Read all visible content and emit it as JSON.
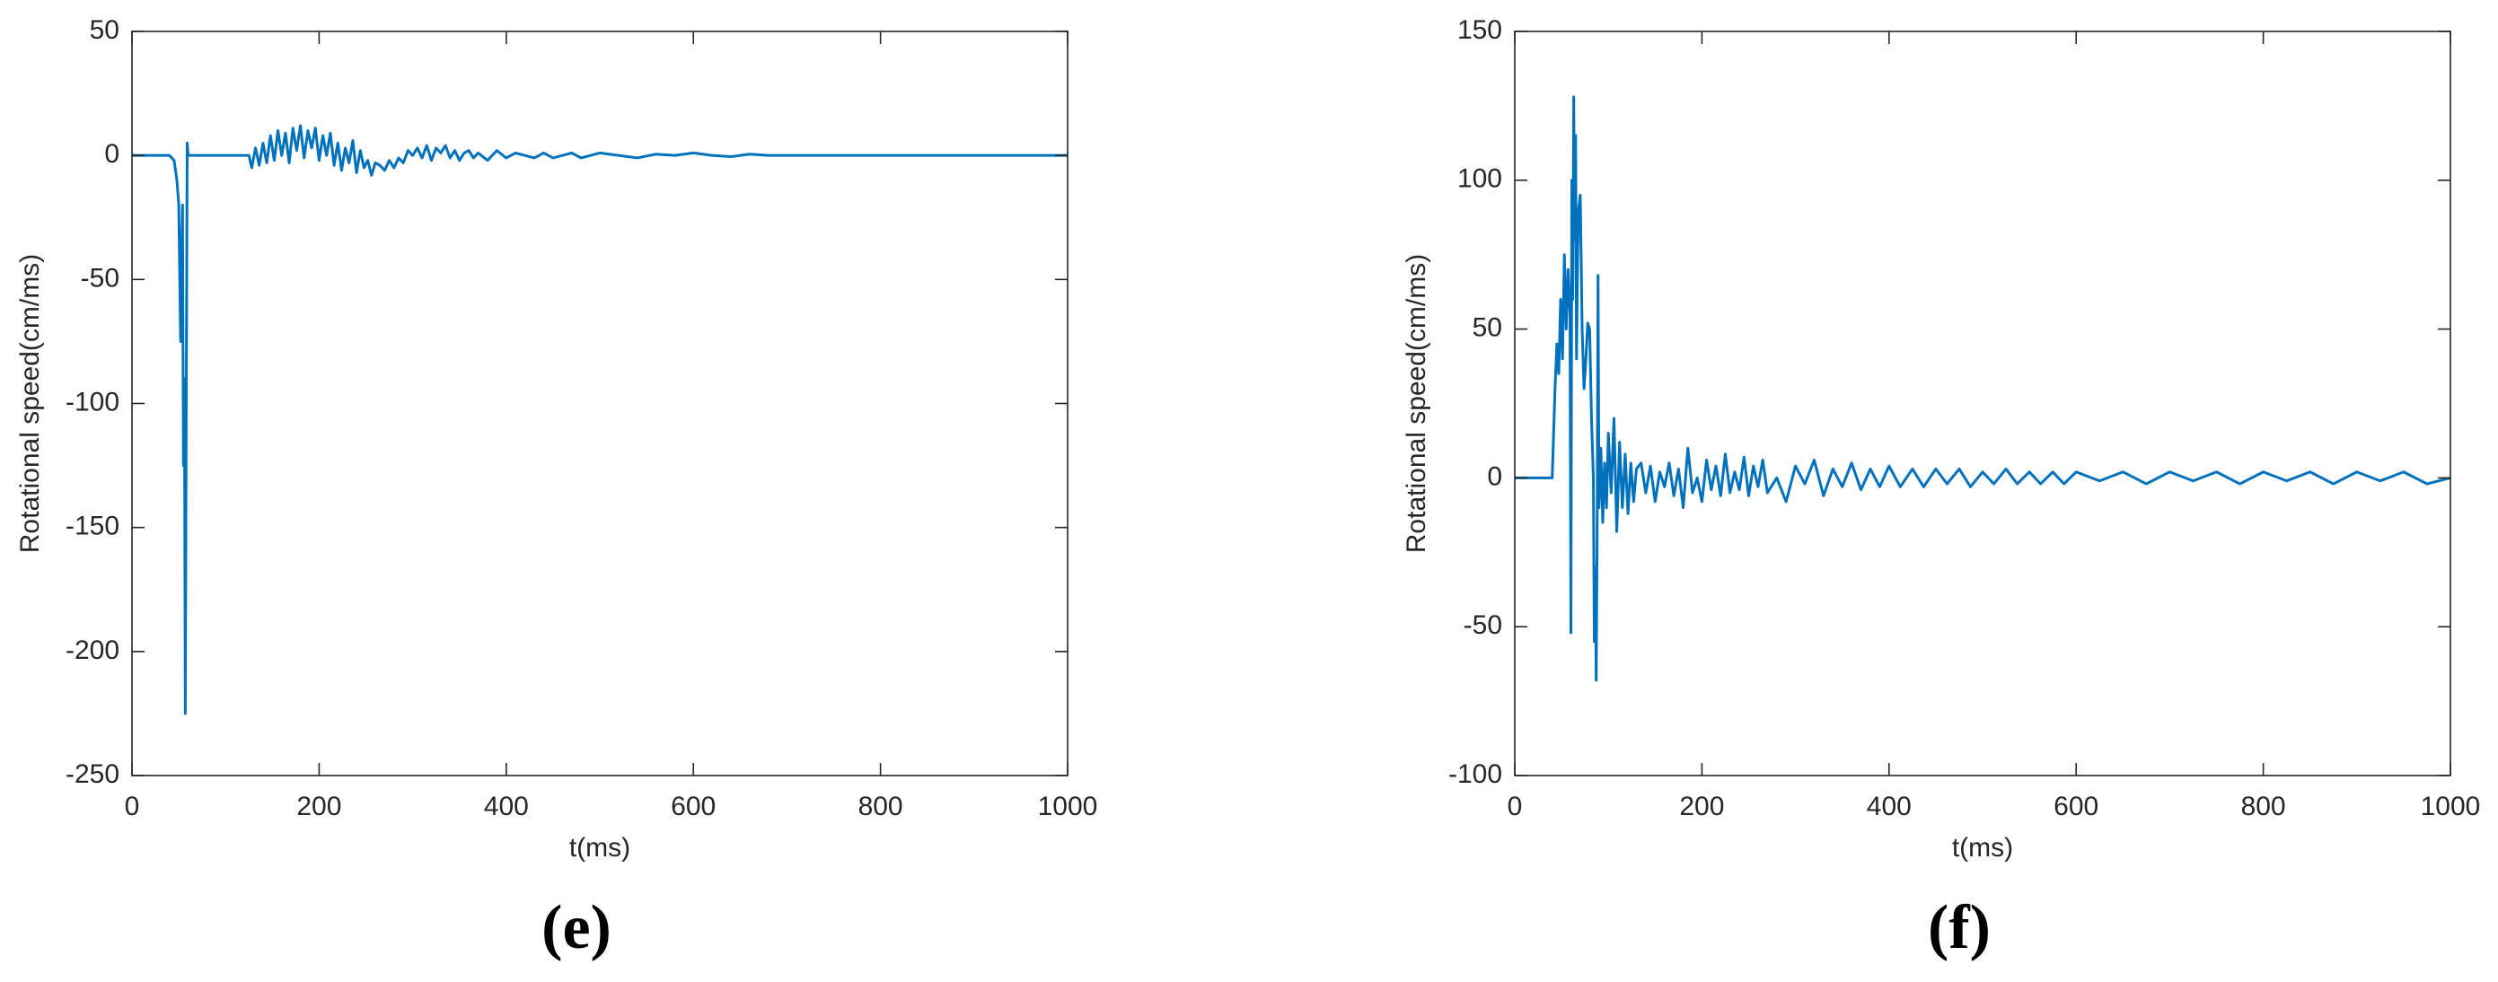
{
  "chart_data": [
    {
      "type": "line",
      "caption": "(e)",
      "xlabel": "t(ms)",
      "ylabel": "Rotational speed(cm/ms)",
      "color": "#0072BD",
      "xlim": [
        0,
        1000
      ],
      "xticks": [
        0,
        200,
        400,
        600,
        800,
        1000
      ],
      "ylim": [
        -250,
        50
      ],
      "yticks": [
        -250,
        -200,
        -150,
        -100,
        -50,
        0,
        50
      ],
      "x": [
        0,
        40,
        45,
        48,
        50,
        52,
        53,
        54,
        55,
        56,
        57,
        58,
        59,
        60,
        62,
        125,
        128,
        132,
        136,
        140,
        144,
        148,
        152,
        156,
        160,
        164,
        168,
        172,
        176,
        180,
        184,
        188,
        192,
        196,
        200,
        204,
        208,
        212,
        216,
        220,
        224,
        228,
        232,
        236,
        240,
        244,
        248,
        252,
        256,
        260,
        265,
        270,
        275,
        280,
        285,
        290,
        295,
        300,
        305,
        310,
        315,
        320,
        325,
        330,
        335,
        340,
        345,
        350,
        355,
        360,
        365,
        370,
        380,
        390,
        400,
        410,
        420,
        430,
        440,
        450,
        460,
        470,
        480,
        490,
        500,
        520,
        540,
        560,
        580,
        600,
        620,
        640,
        660,
        680,
        700,
        750,
        800,
        850,
        900,
        950,
        1000
      ],
      "values": [
        0,
        0,
        -2,
        -10,
        -20,
        -75,
        -40,
        -20,
        -125,
        -90,
        -225,
        -100,
        5,
        0,
        0,
        0,
        -5,
        3,
        -4,
        5,
        -3,
        8,
        -2,
        10,
        0,
        9,
        -3,
        11,
        2,
        12,
        -1,
        10,
        3,
        11,
        -2,
        8,
        0,
        9,
        -4,
        5,
        -6,
        3,
        -3,
        6,
        -7,
        2,
        -5,
        -2,
        -8,
        -3,
        -4,
        -6,
        -2,
        -5,
        -1,
        -3,
        2,
        0,
        3,
        -1,
        4,
        -2,
        3,
        1,
        4,
        -1,
        2,
        -2,
        1,
        2,
        -1,
        1,
        -2,
        2,
        -1,
        1,
        0,
        -1,
        1,
        -1,
        0,
        1,
        -1,
        0,
        1,
        0,
        -1,
        0.5,
        0,
        1,
        0,
        -0.5,
        0.5,
        0,
        0,
        0,
        0,
        0,
        0,
        0,
        0
      ]
    },
    {
      "type": "line",
      "caption": "(f)",
      "xlabel": "t(ms)",
      "ylabel": "Rotational speed(cm/ms)",
      "color": "#0072BD",
      "xlim": [
        0,
        1000
      ],
      "xticks": [
        0,
        200,
        400,
        600,
        800,
        1000
      ],
      "ylim": [
        -100,
        150
      ],
      "yticks": [
        -100,
        -50,
        0,
        50,
        100,
        150
      ],
      "x": [
        0,
        40,
        43,
        45,
        47,
        49,
        51,
        53,
        55,
        57,
        59,
        60,
        61,
        62,
        63,
        64,
        65,
        66,
        67,
        68,
        70,
        72,
        74,
        76,
        78,
        80,
        82,
        84,
        85,
        86,
        87,
        88,
        89,
        90,
        92,
        94,
        96,
        98,
        100,
        103,
        106,
        109,
        112,
        115,
        118,
        121,
        124,
        127,
        130,
        135,
        140,
        145,
        150,
        155,
        160,
        165,
        170,
        175,
        180,
        185,
        190,
        195,
        200,
        205,
        210,
        215,
        220,
        225,
        230,
        235,
        240,
        245,
        250,
        255,
        260,
        265,
        270,
        280,
        290,
        300,
        310,
        320,
        330,
        340,
        350,
        360,
        370,
        380,
        390,
        400,
        412,
        425,
        437,
        450,
        462,
        475,
        487,
        500,
        512,
        525,
        537,
        550,
        562,
        575,
        587,
        600,
        625,
        650,
        675,
        700,
        725,
        750,
        775,
        800,
        825,
        850,
        875,
        900,
        925,
        950,
        975,
        1000
      ],
      "values": [
        0,
        0,
        30,
        45,
        35,
        60,
        40,
        75,
        50,
        70,
        55,
        -52,
        100,
        60,
        128,
        80,
        115,
        40,
        70,
        90,
        95,
        50,
        30,
        40,
        52,
        50,
        20,
        0,
        -55,
        -30,
        -68,
        -20,
        68,
        -10,
        10,
        -15,
        5,
        -10,
        15,
        -5,
        20,
        -18,
        12,
        -10,
        8,
        -12,
        5,
        -8,
        3,
        5,
        -5,
        4,
        -8,
        2,
        -3,
        5,
        -6,
        3,
        -10,
        10,
        -5,
        0,
        -8,
        6,
        -4,
        4,
        -6,
        8,
        -5,
        2,
        -4,
        7,
        -6,
        4,
        -3,
        6,
        -5,
        0,
        -8,
        4,
        -2,
        6,
        -6,
        3,
        -3,
        5,
        -4,
        3,
        -3,
        4,
        -3,
        3,
        -3,
        3,
        -2,
        3,
        -3,
        2,
        -2,
        3,
        -2,
        2,
        -2,
        2,
        -2,
        2,
        -1,
        2,
        -2,
        2,
        -1,
        2,
        -2,
        2,
        -1,
        2,
        -2,
        2,
        -1,
        2,
        -2,
        0
      ]
    }
  ]
}
